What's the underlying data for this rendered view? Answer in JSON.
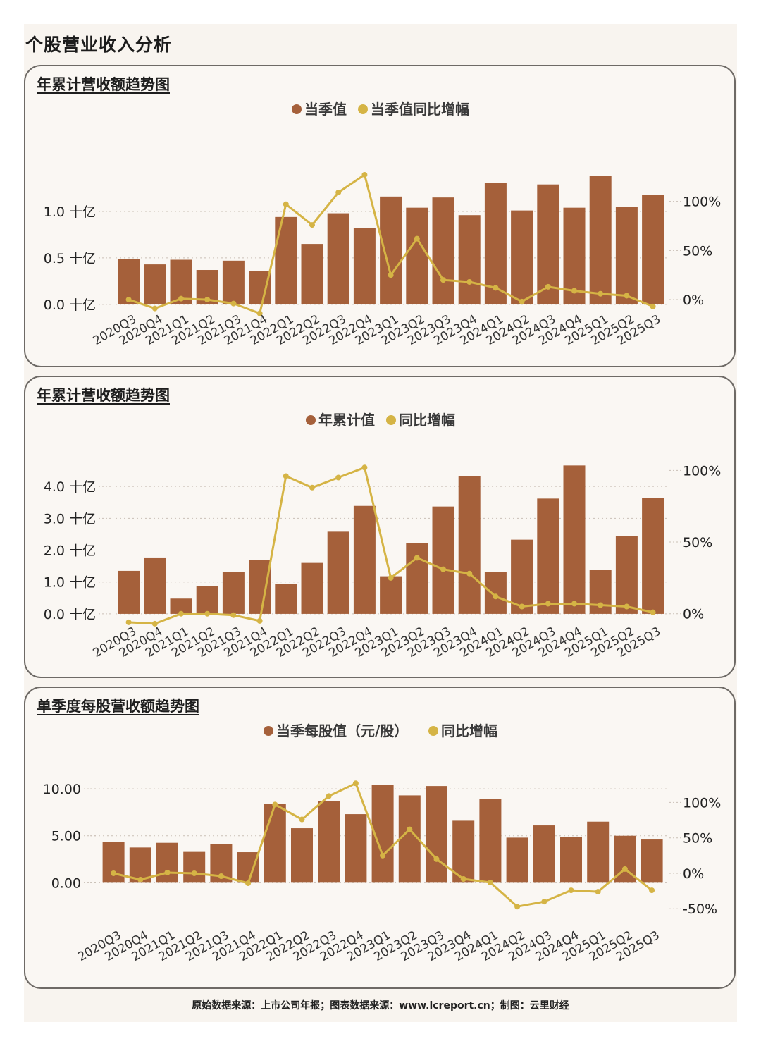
{
  "page": {
    "title": "个股营业收入分析",
    "footer": "原始数据来源：上市公司年报；图表数据来源：www.lcreport.cn；制图：云里财经"
  },
  "colors": {
    "bar": "#a5603a",
    "line": "#d5b445",
    "grid": "#c9c0b6",
    "text": "#222222"
  },
  "chart_data": [
    {
      "type": "bar+line",
      "title": "年累计营收额趋势图",
      "categories": [
        "2020Q3",
        "2020Q4",
        "2021Q1",
        "2021Q2",
        "2021Q3",
        "2021Q4",
        "2022Q1",
        "2022Q2",
        "2022Q3",
        "2022Q4",
        "2023Q1",
        "2023Q2",
        "2023Q3",
        "2023Q4",
        "2024Q1",
        "2024Q2",
        "2024Q3",
        "2024Q4",
        "2025Q1",
        "2025Q2",
        "2025Q3"
      ],
      "legend": [
        "当季值",
        "当季值同比增幅"
      ],
      "series": [
        {
          "name": "当季值",
          "kind": "bar",
          "axis": "left",
          "values": [
            0.49,
            0.43,
            0.48,
            0.37,
            0.47,
            0.36,
            0.94,
            0.65,
            0.98,
            0.82,
            1.16,
            1.04,
            1.15,
            0.96,
            1.31,
            1.01,
            1.29,
            1.04,
            1.38,
            1.05,
            1.18
          ]
        },
        {
          "name": "当季值同比增幅",
          "kind": "line",
          "axis": "right",
          "values": [
            0,
            -9,
            1,
            0,
            -4,
            -14,
            97,
            76,
            109,
            127,
            25,
            62,
            20,
            18,
            12,
            -2,
            13,
            9,
            6,
            4,
            -7
          ]
        }
      ],
      "left_axis": {
        "ylim": [
          -0.1,
          1.5
        ],
        "ticks": [
          0.0,
          0.5,
          1.0
        ],
        "tick_labels": [
          "0.0 十亿",
          "0.5 十亿",
          "1.0 十亿"
        ]
      },
      "right_axis": {
        "ylim": [
          -14.3,
          137
        ],
        "ticks": [
          0,
          50,
          100
        ],
        "tick_labels": [
          "0%",
          "50%",
          "100%"
        ]
      }
    },
    {
      "type": "bar+line",
      "title": "年累计营收额趋势图",
      "categories": [
        "2020Q3",
        "2020Q4",
        "2021Q1",
        "2021Q2",
        "2021Q3",
        "2021Q4",
        "2022Q1",
        "2022Q2",
        "2022Q3",
        "2022Q4",
        "2023Q1",
        "2023Q2",
        "2023Q3",
        "2023Q4",
        "2024Q1",
        "2024Q2",
        "2024Q3",
        "2024Q4",
        "2025Q1",
        "2025Q2",
        "2025Q3"
      ],
      "legend": [
        "年累计值",
        "同比增幅"
      ],
      "series": [
        {
          "name": "年累计值",
          "kind": "bar",
          "axis": "left",
          "values": [
            1.35,
            1.77,
            0.48,
            0.87,
            1.32,
            1.69,
            0.95,
            1.6,
            2.58,
            3.39,
            1.18,
            2.22,
            3.37,
            4.33,
            1.31,
            2.33,
            3.62,
            4.66,
            1.38,
            2.45,
            3.63
          ]
        },
        {
          "name": "同比增幅",
          "kind": "line",
          "axis": "right",
          "values": [
            -6,
            -7,
            0,
            0,
            -1,
            -5,
            96,
            88,
            95,
            102,
            25,
            39,
            31,
            28,
            12,
            5,
            7,
            7,
            6,
            5,
            1
          ]
        }
      ],
      "left_axis": {
        "ylim": [
          -0.4,
          5.0
        ],
        "ticks": [
          0.0,
          1.0,
          2.0,
          3.0,
          4.0
        ],
        "tick_labels": [
          "0.0 十亿",
          "1.0 十亿",
          "2.0 十亿",
          "3.0 十亿",
          "4.0 十亿"
        ]
      },
      "right_axis": {
        "ylim": [
          -9,
          111
        ],
        "ticks": [
          0,
          50,
          100
        ],
        "tick_labels": [
          "0%",
          "50%",
          "100%"
        ]
      }
    },
    {
      "type": "bar+line",
      "title": "单季度每股营收额趋势图",
      "categories": [
        "2020Q3",
        "2020Q4",
        "2021Q1",
        "2021Q2",
        "2021Q3",
        "2021Q4",
        "2022Q1",
        "2022Q2",
        "2022Q3",
        "2022Q4",
        "2023Q1",
        "2023Q2",
        "2023Q3",
        "2023Q4",
        "2024Q1",
        "2024Q2",
        "2024Q3",
        "2024Q4",
        "2025Q1",
        "2025Q2",
        "2025Q3"
      ],
      "legend": [
        "当季每股值（元/股）",
        "同比增幅"
      ],
      "series": [
        {
          "name": "当季每股值（元/股）",
          "kind": "bar",
          "axis": "left",
          "values": [
            4.35,
            3.75,
            4.25,
            3.28,
            4.15,
            3.25,
            8.4,
            5.8,
            8.7,
            7.3,
            10.4,
            9.3,
            10.3,
            6.6,
            8.9,
            4.8,
            6.1,
            4.9,
            6.5,
            5.0,
            4.6
          ]
        },
        {
          "name": "同比增幅",
          "kind": "line",
          "axis": "right",
          "values": [
            0,
            -9,
            1,
            0,
            -4,
            -14,
            97,
            76,
            109,
            127,
            25,
            62,
            20,
            -8,
            -13,
            -47,
            -40,
            -24,
            -26,
            6,
            -24
          ]
        }
      ],
      "left_axis": {
        "ylim": [
          -4.93,
          12.86
        ],
        "ticks": [
          0.0,
          5.0,
          10.0
        ],
        "tick_labels": [
          "0.00",
          "5.00",
          "10.00"
        ]
      },
      "right_axis": {
        "ylim": [
          -78.6,
          157.1
        ],
        "ticks": [
          -50,
          0,
          50,
          100
        ],
        "tick_labels": [
          "-50%",
          "0%",
          "50%",
          "100%"
        ]
      }
    }
  ]
}
